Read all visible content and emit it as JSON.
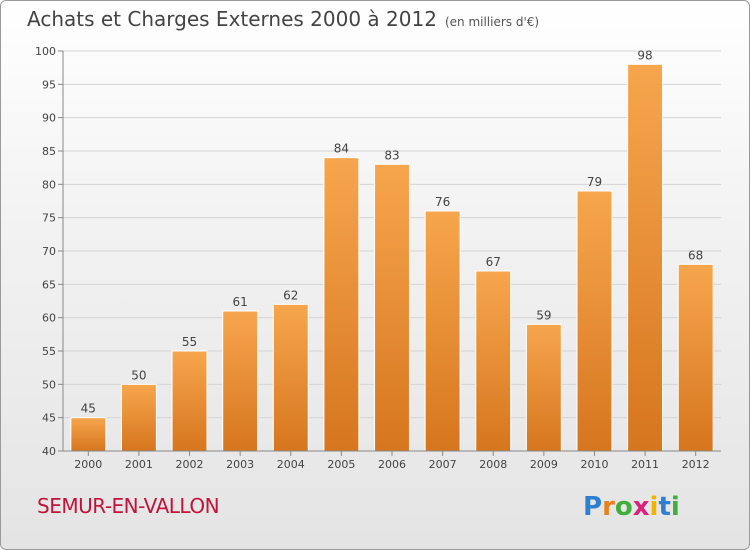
{
  "header": {
    "title": "Achats et Charges Externes 2000 à 2012",
    "unit": "(en milliers d'€)"
  },
  "footer": {
    "place": "SEMUR-EN-VALLON",
    "brand": "Proxiti"
  },
  "colors": {
    "bar_light": "#f7a64e",
    "bar_dark": "#d6761e",
    "place_text": "#c0143c"
  },
  "chart_data": {
    "type": "bar",
    "title": "Achats et Charges Externes 2000 à 2012",
    "subtitle": "(en milliers d'€)",
    "xlabel": "",
    "ylabel": "",
    "categories": [
      "2000",
      "2001",
      "2002",
      "2003",
      "2004",
      "2005",
      "2006",
      "2007",
      "2008",
      "2009",
      "2010",
      "2011",
      "2012"
    ],
    "values": [
      45,
      50,
      55,
      61,
      62,
      84,
      83,
      76,
      67,
      59,
      79,
      98,
      68
    ],
    "ylim": [
      40,
      100
    ],
    "yticks": [
      40,
      45,
      50,
      55,
      60,
      65,
      70,
      75,
      80,
      85,
      90,
      95,
      100
    ],
    "grid": true,
    "data_labels": true
  }
}
